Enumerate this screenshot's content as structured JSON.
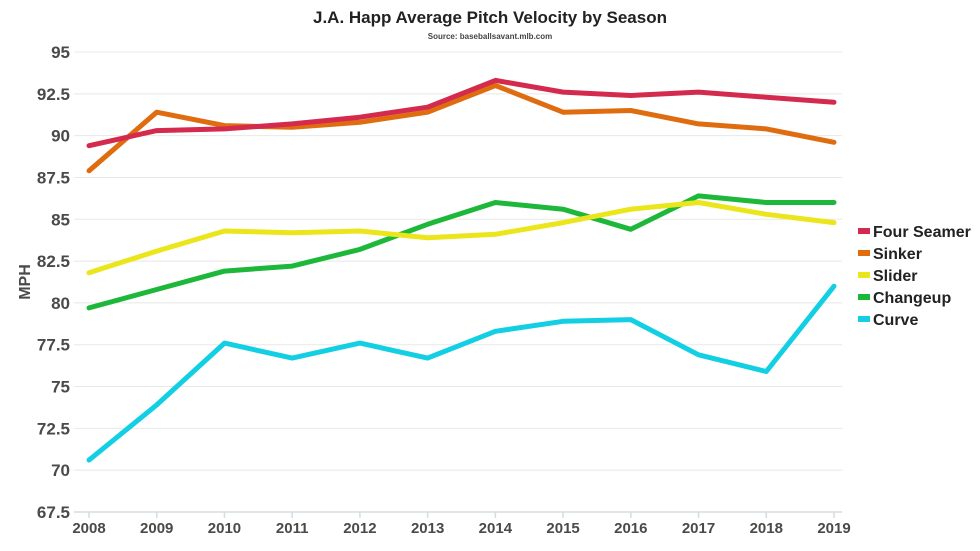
{
  "chart_data": {
    "type": "line",
    "title": "J.A. Happ Average Pitch Velocity by Season",
    "subtitle": "Source: baseballsavant.mlb.com",
    "xlabel": "",
    "ylabel": "MPH",
    "x": [
      "2008",
      "2009",
      "2010",
      "2011",
      "2012",
      "2013",
      "2014",
      "2015",
      "2016",
      "2017",
      "2018",
      "2019"
    ],
    "ylim": [
      67.5,
      95
    ],
    "yticks": [
      "67.5",
      "70",
      "72.5",
      "75",
      "77.5",
      "80",
      "82.5",
      "85",
      "87.5",
      "90",
      "92.5",
      "95"
    ],
    "grid": true,
    "legend_position": "right",
    "series": [
      {
        "name": "Four Seamer",
        "color": "#d42a4e",
        "values": [
          89.4,
          90.3,
          90.4,
          90.7,
          91.1,
          91.7,
          93.3,
          92.6,
          92.4,
          92.6,
          92.3,
          92.0
        ]
      },
      {
        "name": "Sinker",
        "color": "#e06c10",
        "values": [
          87.9,
          91.4,
          90.6,
          90.5,
          90.8,
          91.4,
          93.0,
          91.4,
          91.5,
          90.7,
          90.4,
          89.6
        ]
      },
      {
        "name": "Slider",
        "color": "#ebe51c",
        "values": [
          81.8,
          83.1,
          84.3,
          84.2,
          84.3,
          83.9,
          84.1,
          84.8,
          85.6,
          86.0,
          85.3,
          84.8
        ]
      },
      {
        "name": "Changeup",
        "color": "#1db83a",
        "values": [
          79.7,
          80.8,
          81.9,
          82.2,
          83.2,
          84.7,
          86.0,
          85.6,
          84.4,
          86.4,
          86.0,
          86.0
        ]
      },
      {
        "name": "Curve",
        "color": "#13cfe3",
        "values": [
          70.6,
          73.9,
          77.6,
          76.7,
          77.6,
          76.7,
          78.3,
          78.9,
          79.0,
          76.9,
          75.9,
          81.0
        ]
      }
    ]
  }
}
